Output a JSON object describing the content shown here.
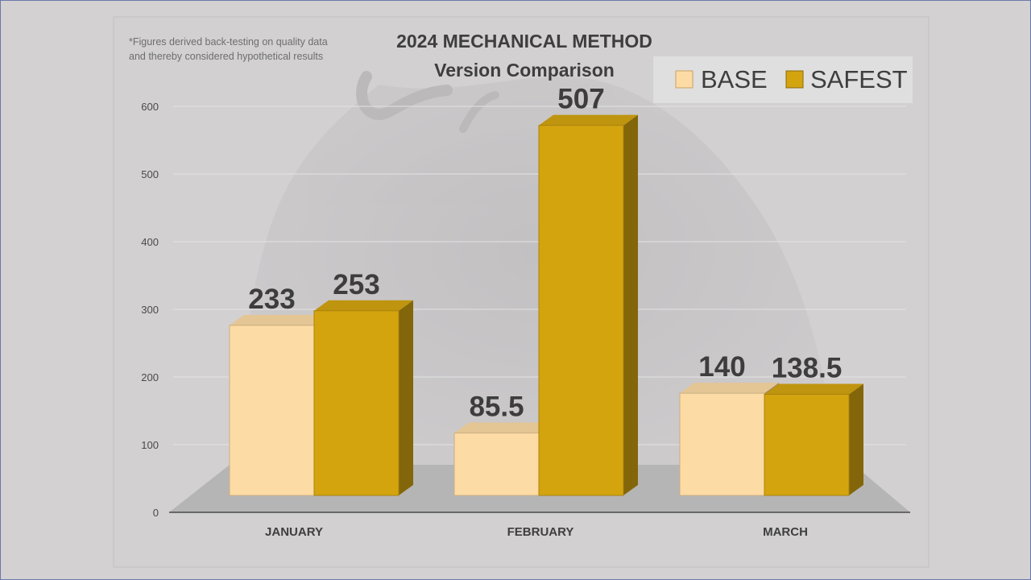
{
  "footnote": {
    "line1": "*Figures derived back-testing on quality data",
    "line2": "and thereby considered hypothetical results"
  },
  "chart_data": {
    "type": "bar",
    "title": "2024 MECHANICAL METHOD",
    "subtitle": "Version Comparison",
    "categories": [
      "JANUARY",
      "FEBRUARY",
      "MARCH"
    ],
    "series": [
      {
        "name": "BASE",
        "values": [
          233,
          85.5,
          140
        ],
        "labels": [
          "233",
          "85.5",
          "140"
        ],
        "color": "#fddba4"
      },
      {
        "name": "SAFEST",
        "values": [
          253,
          507,
          138.5
        ],
        "labels": [
          "253",
          "507",
          "138.5"
        ],
        "color": "#d4a40f"
      }
    ],
    "ylim": [
      0,
      600
    ],
    "yticks": [
      "0",
      "100",
      "200",
      "300",
      "400",
      "500",
      "600"
    ],
    "grid": true,
    "legend": "top-right",
    "xlabel": "",
    "ylabel": ""
  }
}
